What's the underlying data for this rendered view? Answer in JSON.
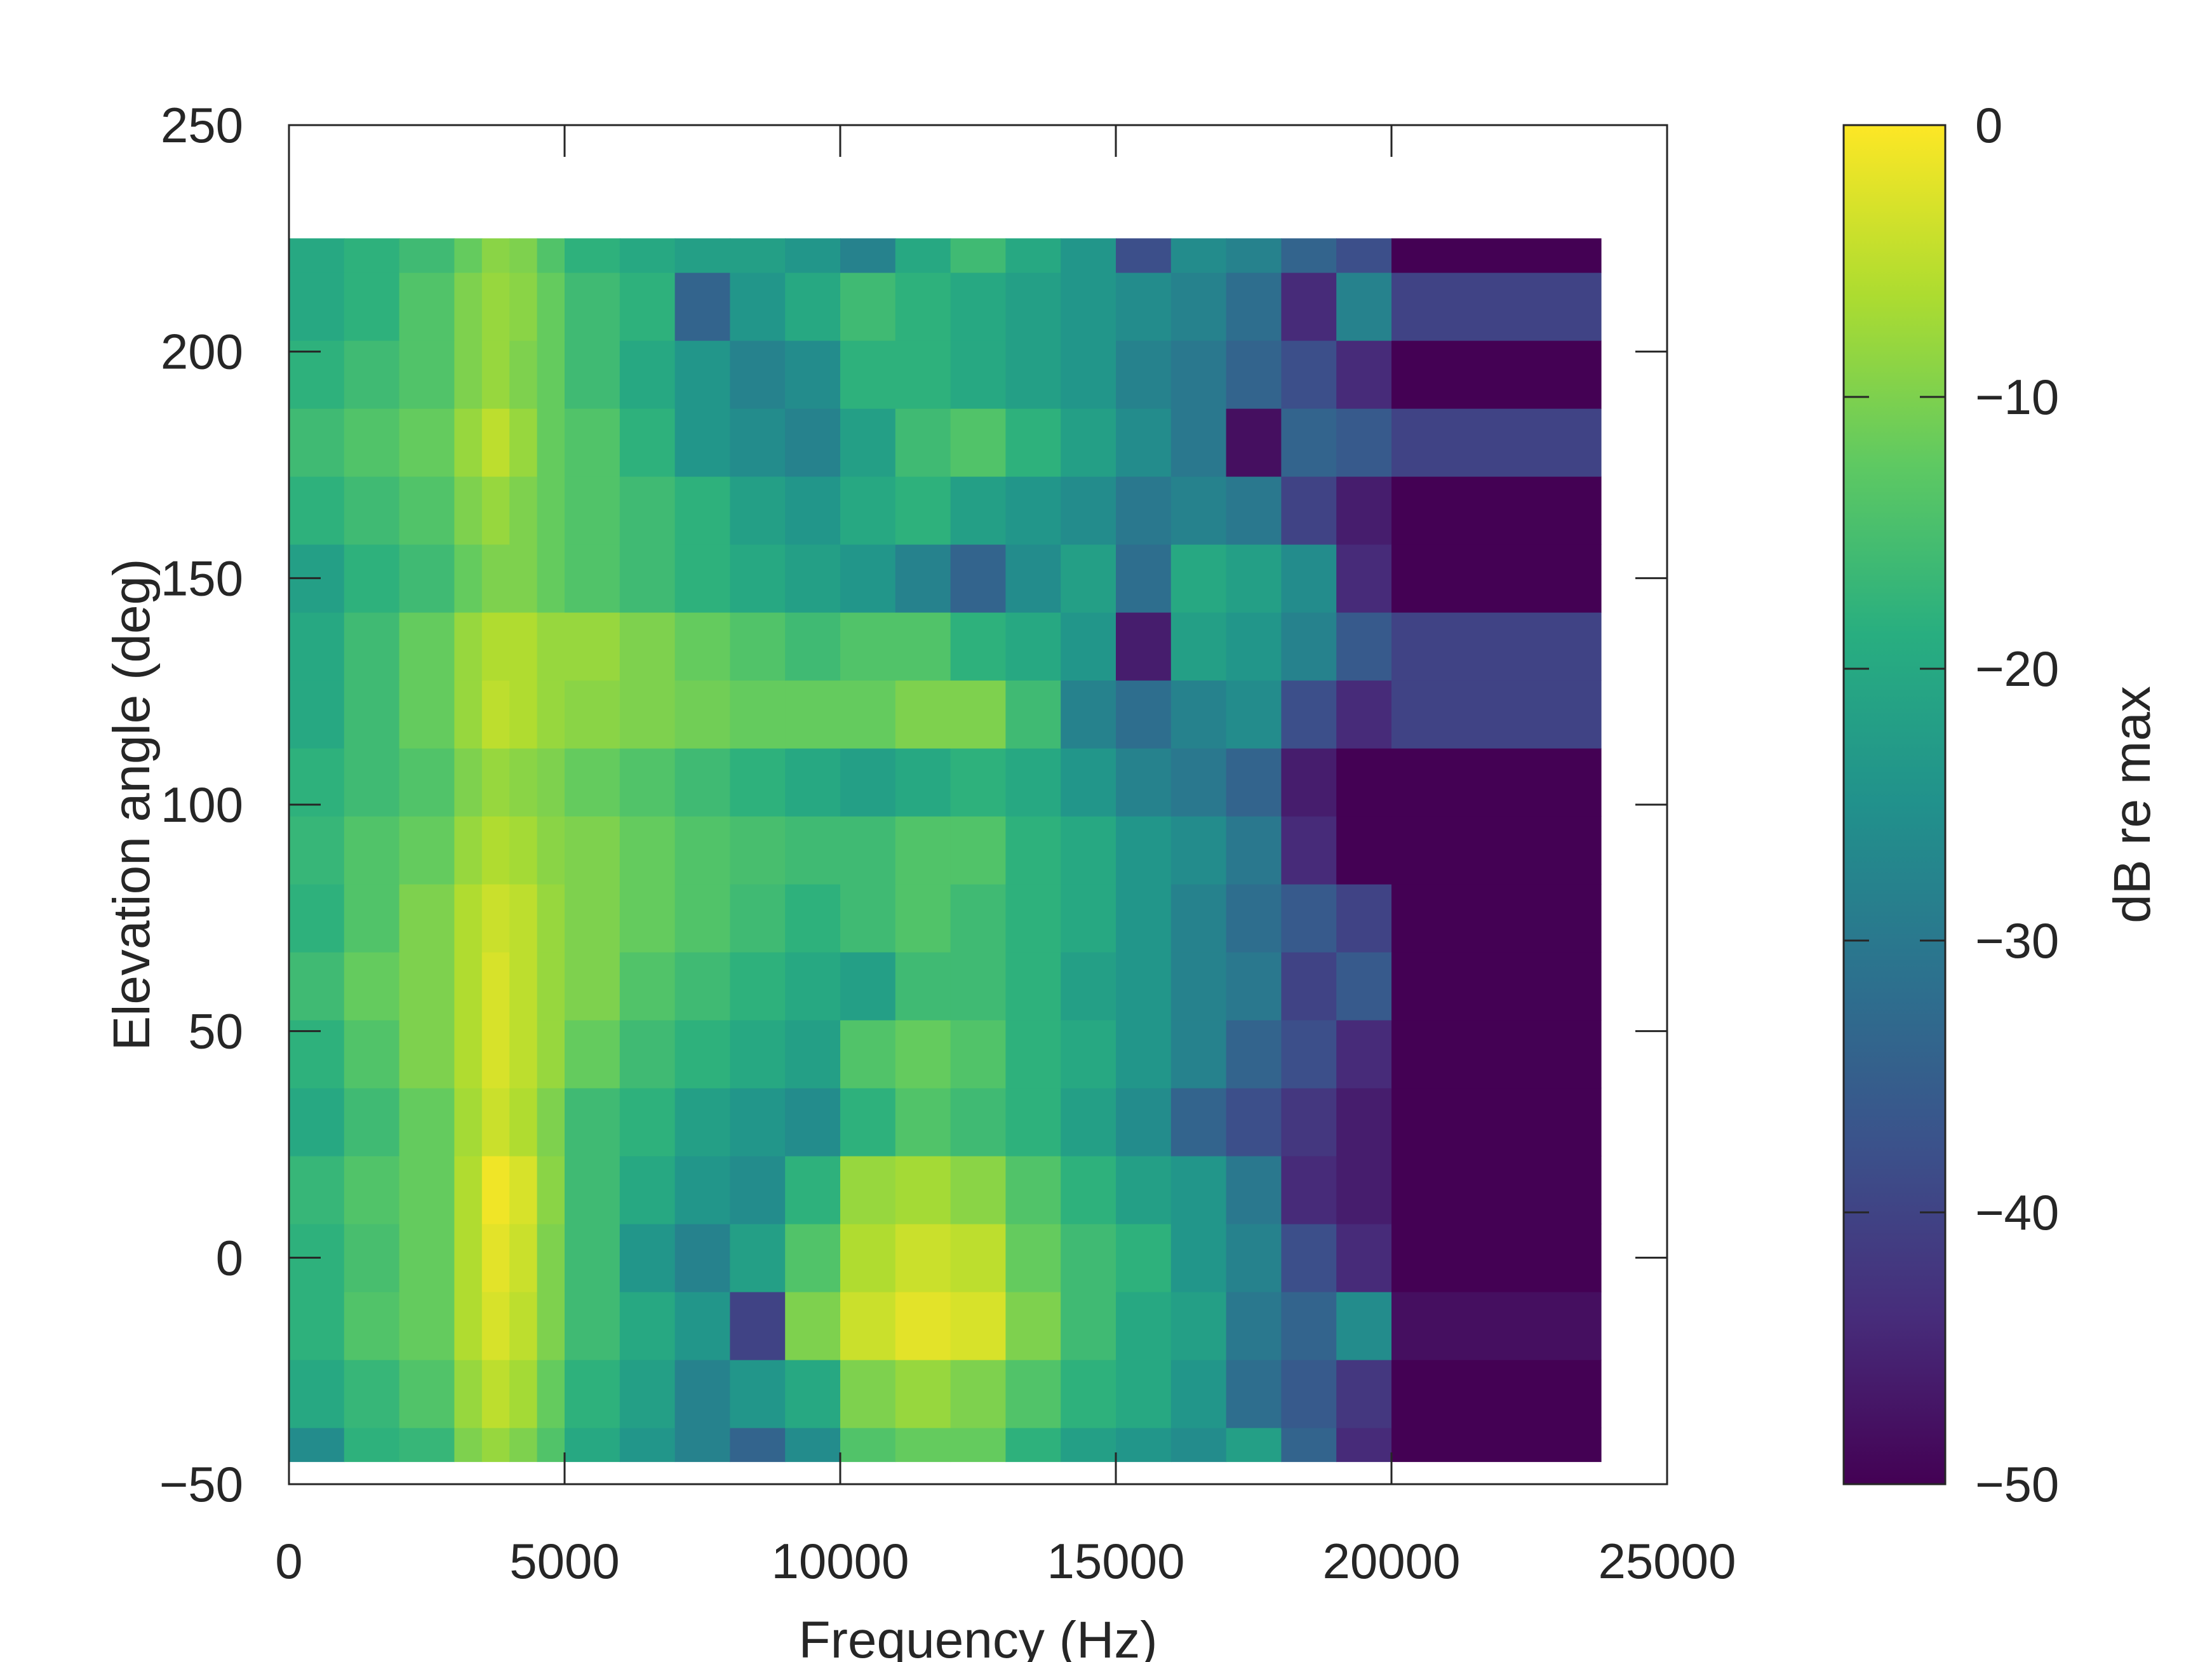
{
  "chart_data": {
    "type": "heatmap",
    "title": "",
    "xlabel": "Frequency (Hz)",
    "ylabel": "Elevation angle (deg)",
    "colorbar_label": "dB re max",
    "colormap": "viridis",
    "xlim": [
      0,
      25000
    ],
    "ylim": [
      -50,
      250
    ],
    "clim": [
      -50,
      0
    ],
    "x_ticks": [
      0,
      5000,
      10000,
      15000,
      20000,
      25000
    ],
    "x_tick_labels": [
      "0",
      "5000",
      "10000",
      "15000",
      "20000",
      "25000"
    ],
    "y_ticks": [
      -50,
      0,
      50,
      100,
      150,
      200,
      250
    ],
    "y_tick_labels": [
      "−50",
      "0",
      "50",
      "100",
      "150",
      "200",
      "250"
    ],
    "colorbar_ticks": [
      0,
      -10,
      -20,
      -30,
      -40,
      -50
    ],
    "colorbar_tick_labels": [
      "0",
      "−10",
      "−20",
      "−30",
      "−40",
      "−50"
    ],
    "x_extent": [
      0,
      23800
    ],
    "elevations": [
      -45,
      -30,
      -15,
      0,
      15,
      30,
      45,
      60,
      75,
      90,
      105,
      120,
      135,
      150,
      165,
      180,
      195,
      210,
      225
    ],
    "frequency_bins": [
      0,
      1000,
      2000,
      3000,
      3500,
      4000,
      4500,
      5000,
      6000,
      7000,
      8000,
      9000,
      10000,
      11000,
      12000,
      13000,
      14000,
      15000,
      16000,
      17000,
      18000,
      19000,
      20000,
      23800
    ],
    "values_db": [
      [
        -26,
        -18,
        -17,
        -10,
        -8,
        -10,
        -14,
        -20,
        -24,
        -28,
        -34,
        -26,
        -14,
        -12,
        -12,
        -18,
        -22,
        -24,
        -26,
        -22,
        -34,
        -44,
        -50
      ],
      [
        -20,
        -17,
        -14,
        -8,
        -5,
        -7,
        -12,
        -18,
        -22,
        -28,
        -24,
        -20,
        -10,
        -8,
        -10,
        -14,
        -18,
        -20,
        -24,
        -32,
        -36,
        -42,
        -50
      ],
      [
        -18,
        -14,
        -12,
        -6,
        -3,
        -5,
        -10,
        -16,
        -20,
        -24,
        -40,
        -10,
        -4,
        -2,
        -3,
        -10,
        -16,
        -20,
        -22,
        -30,
        -34,
        -26,
        -48
      ],
      [
        -18,
        -15,
        -12,
        -6,
        -2,
        -4,
        -10,
        -16,
        -24,
        -28,
        -22,
        -14,
        -6,
        -4,
        -5,
        -12,
        -16,
        -18,
        -24,
        -28,
        -38,
        -44,
        -50
      ],
      [
        -17,
        -14,
        -12,
        -6,
        -1,
        -3,
        -9,
        -16,
        -20,
        -24,
        -26,
        -18,
        -8,
        -7,
        -9,
        -14,
        -18,
        -22,
        -24,
        -30,
        -44,
        -46,
        -50
      ],
      [
        -20,
        -16,
        -12,
        -7,
        -4,
        -6,
        -10,
        -16,
        -18,
        -22,
        -24,
        -26,
        -18,
        -14,
        -16,
        -18,
        -22,
        -26,
        -34,
        -38,
        -42,
        -46,
        -50
      ],
      [
        -18,
        -14,
        -10,
        -6,
        -3,
        -5,
        -8,
        -12,
        -16,
        -18,
        -20,
        -22,
        -14,
        -12,
        -14,
        -18,
        -20,
        -24,
        -28,
        -34,
        -38,
        -44,
        -50
      ],
      [
        -16,
        -12,
        -10,
        -6,
        -3,
        -5,
        -8,
        -10,
        -14,
        -16,
        -18,
        -20,
        -22,
        -16,
        -16,
        -18,
        -22,
        -24,
        -28,
        -30,
        -40,
        -36,
        -50
      ],
      [
        -18,
        -14,
        -10,
        -6,
        -4,
        -5,
        -8,
        -10,
        -12,
        -14,
        -16,
        -18,
        -16,
        -14,
        -16,
        -18,
        -20,
        -24,
        -28,
        -32,
        -36,
        -40,
        -50
      ],
      [
        -17,
        -14,
        -12,
        -8,
        -6,
        -7,
        -9,
        -10,
        -12,
        -14,
        -15,
        -16,
        -16,
        -14,
        -14,
        -18,
        -20,
        -24,
        -26,
        -30,
        -44,
        -50,
        -50
      ],
      [
        -18,
        -16,
        -14,
        -10,
        -8,
        -9,
        -10,
        -12,
        -14,
        -16,
        -18,
        -20,
        -22,
        -20,
        -18,
        -20,
        -24,
        -28,
        -30,
        -34,
        -46,
        -50,
        -50
      ],
      [
        -20,
        -16,
        -12,
        -8,
        -5,
        -6,
        -8,
        -9,
        -10,
        -11,
        -12,
        -12,
        -12,
        -10,
        -10,
        -16,
        -28,
        -32,
        -28,
        -26,
        -38,
        -44,
        -40
      ],
      [
        -20,
        -16,
        -12,
        -8,
        -6,
        -6,
        -8,
        -8,
        -10,
        -12,
        -14,
        -16,
        -14,
        -14,
        -18,
        -20,
        -24,
        -46,
        -22,
        -24,
        -28,
        -36,
        -40
      ],
      [
        -22,
        -18,
        -16,
        -12,
        -10,
        -10,
        -12,
        -14,
        -16,
        -18,
        -20,
        -22,
        -24,
        -28,
        -34,
        -26,
        -22,
        -32,
        -20,
        -22,
        -26,
        -44,
        -50
      ],
      [
        -18,
        -16,
        -14,
        -10,
        -8,
        -10,
        -12,
        -14,
        -16,
        -18,
        -22,
        -24,
        -20,
        -18,
        -22,
        -24,
        -26,
        -30,
        -28,
        -30,
        -40,
        -46,
        -50
      ],
      [
        -16,
        -14,
        -12,
        -8,
        -5,
        -8,
        -12,
        -14,
        -18,
        -24,
        -26,
        -28,
        -22,
        -16,
        -14,
        -18,
        -22,
        -26,
        -30,
        -48,
        -34,
        -36,
        -40
      ],
      [
        -18,
        -16,
        -14,
        -10,
        -8,
        -10,
        -12,
        -16,
        -20,
        -24,
        -28,
        -26,
        -18,
        -18,
        -20,
        -22,
        -24,
        -28,
        -30,
        -34,
        -38,
        -44,
        -50
      ],
      [
        -20,
        -18,
        -14,
        -10,
        -8,
        -9,
        -12,
        -16,
        -18,
        -34,
        -24,
        -20,
        -16,
        -18,
        -20,
        -22,
        -24,
        -26,
        -28,
        -32,
        -44,
        -28,
        -40
      ],
      [
        -20,
        -18,
        -16,
        -12,
        -9,
        -10,
        -14,
        -18,
        -20,
        -22,
        -22,
        -24,
        -28,
        -20,
        -16,
        -20,
        -24,
        -38,
        -26,
        -28,
        -34,
        -38,
        -50
      ]
    ]
  }
}
